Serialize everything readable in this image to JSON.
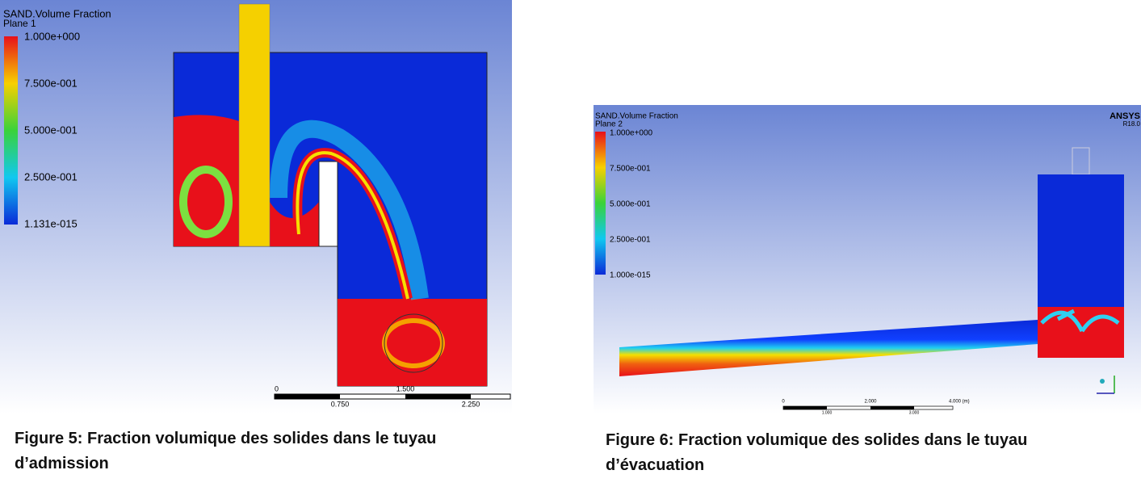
{
  "figures": [
    {
      "legend_title": "SAND.Volume Fraction",
      "plane": "Plane 1",
      "legend_labels": [
        "1.000e+000",
        "7.500e-001",
        "5.000e-001",
        "2.500e-001",
        "1.131e-015"
      ],
      "scale_top": [
        "0",
        "1.500"
      ],
      "scale_bottom": [
        "0.750",
        "2.250"
      ],
      "caption": [
        "Figure 5: Fraction volumique des solides dans le tuyau",
        "d’admission"
      ]
    },
    {
      "legend_title": "SAND.Volume Fraction",
      "plane": "Plane 2",
      "logo": "ANSYS",
      "version": "R18.0",
      "legend_labels": [
        "1.000e+000",
        "7.500e-001",
        "5.000e-001",
        "2.500e-001",
        "1.000e-015"
      ],
      "scale_top": [
        "0",
        "2.000",
        "4.000 (m)"
      ],
      "scale_bottom": [
        "1.000",
        "3.000"
      ],
      "caption": [
        "Figure 6: Fraction volumique des solides dans le tuyau",
        "d’évacuation"
      ]
    }
  ]
}
